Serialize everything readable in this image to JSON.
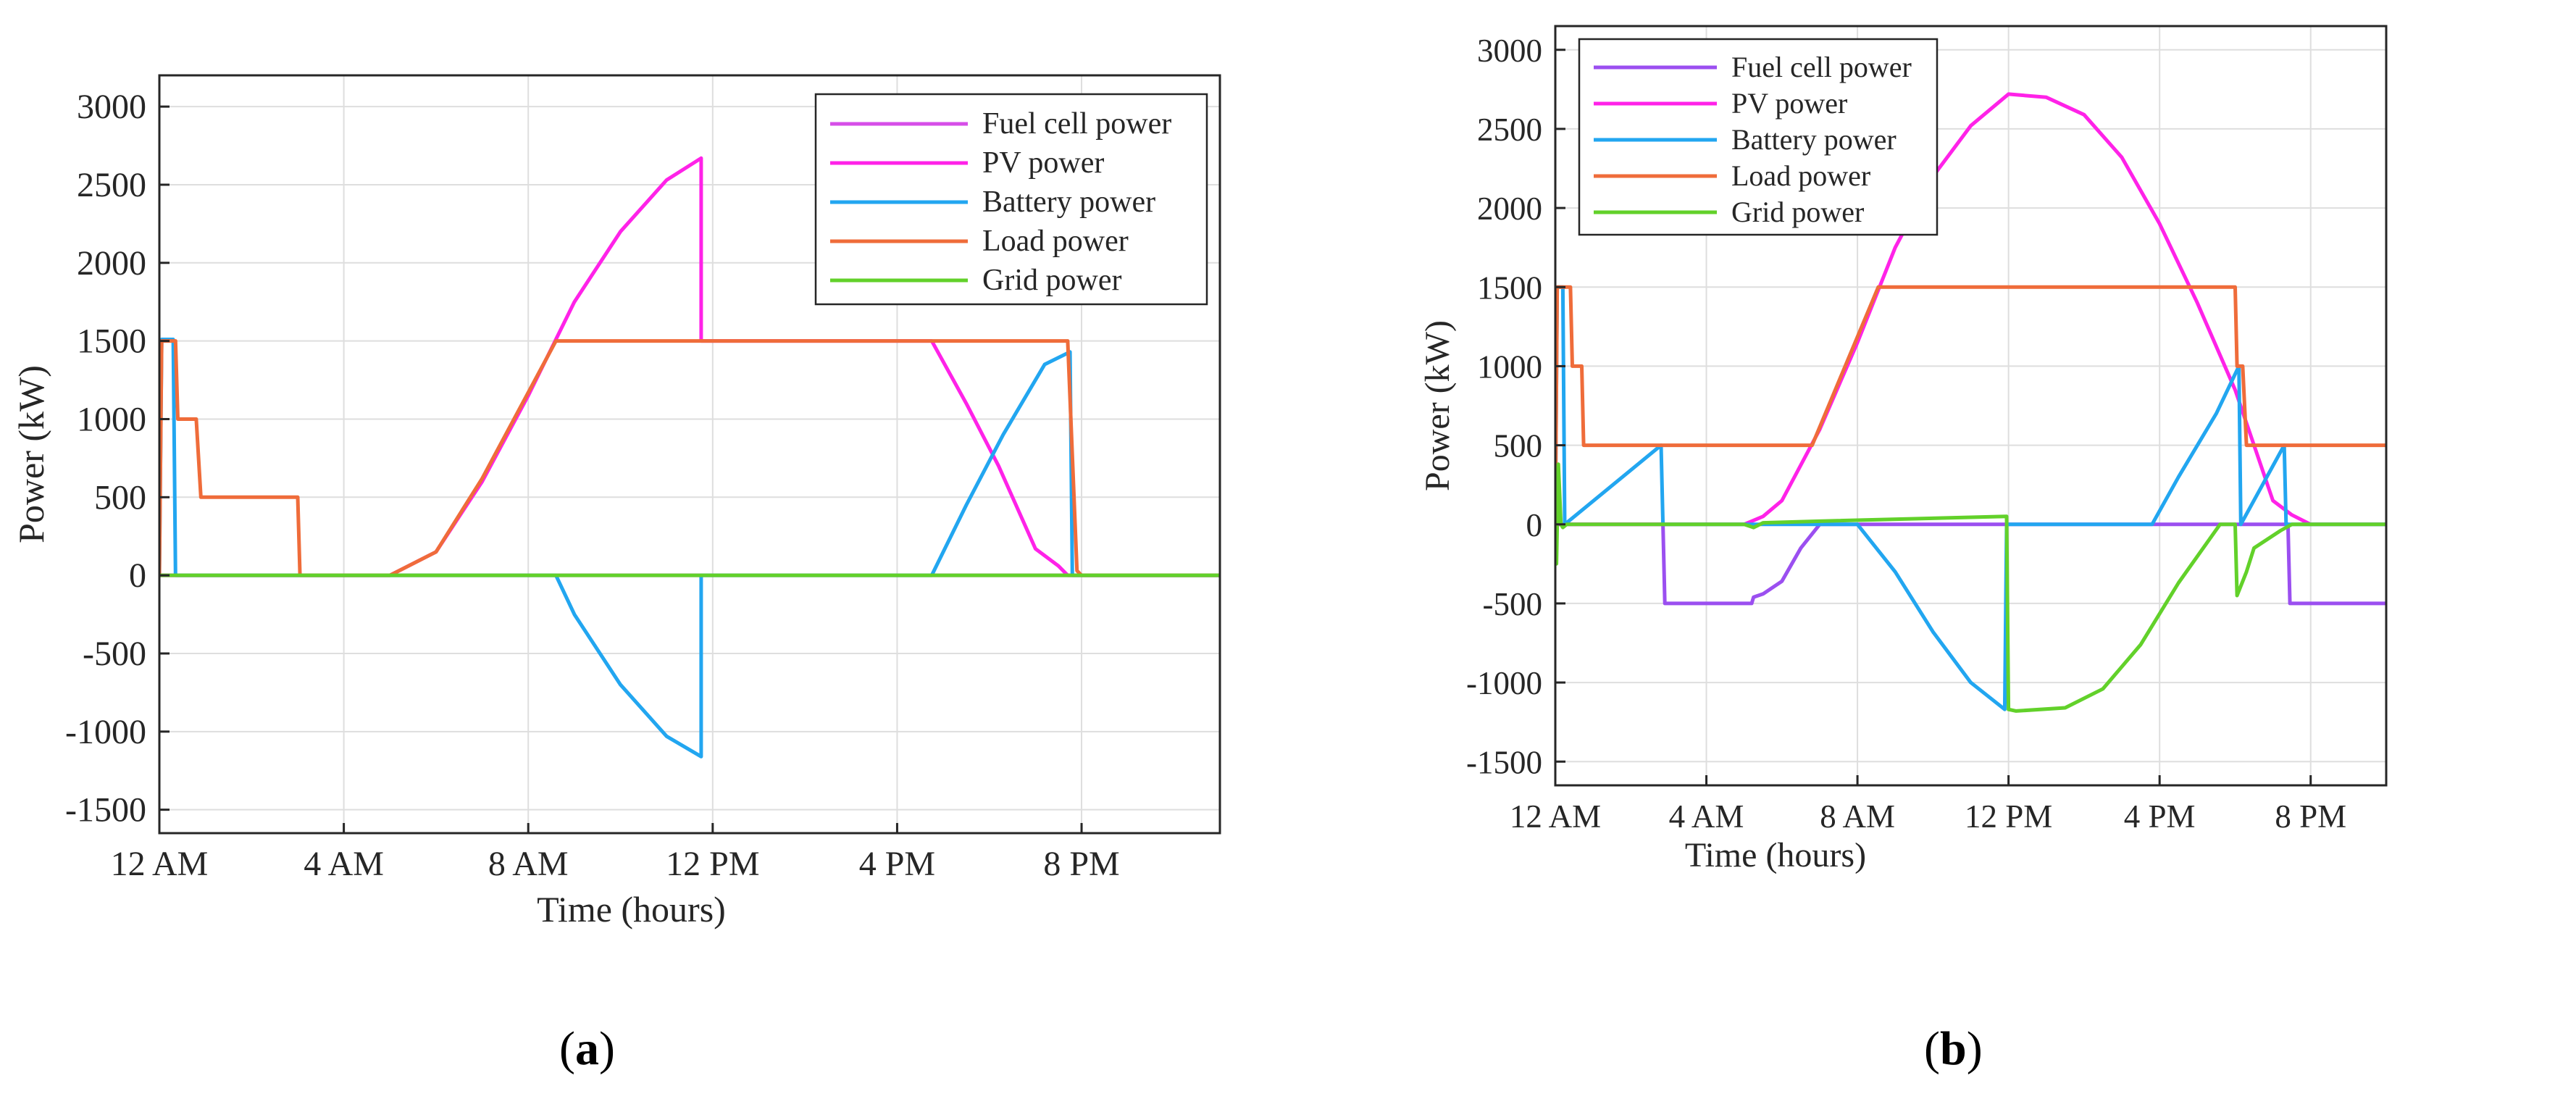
{
  "chart_data": [
    {
      "type": "line",
      "panel_label": "a",
      "xlabel": "Time (hours)",
      "ylabel": "Power (kW)",
      "xlim": [
        0,
        23
      ],
      "ylim": [
        -1650,
        3200
      ],
      "xticks": [
        0,
        4,
        8,
        12,
        16,
        20
      ],
      "xtick_labels": [
        "12 AM",
        "4 AM",
        "8 AM",
        "12 PM",
        "4 PM",
        "8 PM"
      ],
      "yticks": [
        -1500,
        -1000,
        -500,
        0,
        500,
        1000,
        1500,
        2000,
        2500,
        3000
      ],
      "ytick_labels": [
        "-1500",
        "-1000",
        "-500",
        "0",
        "500",
        "1000",
        "1500",
        "2000",
        "2500",
        "3000"
      ],
      "grid": true,
      "legend_position": "top-right",
      "series": [
        {
          "name": "Fuel cell power",
          "color": "#d64ee8",
          "points": [
            [
              0,
              0
            ],
            [
              23,
              0
            ]
          ]
        },
        {
          "name": "PV power",
          "color": "#ff22e8",
          "points": [
            [
              0,
              0
            ],
            [
              5,
              0
            ],
            [
              6,
              150
            ],
            [
              7,
              600
            ],
            [
              8,
              1150
            ],
            [
              9,
              1750
            ],
            [
              10,
              2200
            ],
            [
              11,
              2530
            ],
            [
              11.75,
              2670
            ],
            [
              11.75,
              1500
            ],
            [
              16.75,
              1500
            ],
            [
              17.5,
              1100
            ],
            [
              18.2,
              700
            ],
            [
              19,
              170
            ],
            [
              19.5,
              60
            ],
            [
              19.7,
              0
            ],
            [
              23,
              0
            ]
          ]
        },
        {
          "name": "Battery power",
          "color": "#22a6f0",
          "points": [
            [
              0,
              0
            ],
            [
              0.05,
              1510
            ],
            [
              0.3,
              1510
            ],
            [
              0.35,
              0
            ],
            [
              8.6,
              0
            ],
            [
              9,
              -250
            ],
            [
              10,
              -700
            ],
            [
              11,
              -1030
            ],
            [
              11.75,
              -1160
            ],
            [
              11.75,
              0
            ],
            [
              16.75,
              0
            ],
            [
              17.5,
              450
            ],
            [
              18.3,
              900
            ],
            [
              19.2,
              1350
            ],
            [
              19.75,
              1430
            ],
            [
              19.8,
              0
            ],
            [
              23,
              0
            ]
          ]
        },
        {
          "name": "Load power",
          "color": "#ef6c3a",
          "points": [
            [
              0,
              0
            ],
            [
              0.05,
              1500
            ],
            [
              0.35,
              1500
            ],
            [
              0.4,
              1000
            ],
            [
              0.8,
              1000
            ],
            [
              0.9,
              500
            ],
            [
              3,
              500
            ],
            [
              3.05,
              0
            ],
            [
              5,
              0
            ],
            [
              6,
              150
            ],
            [
              7,
              620
            ],
            [
              8.6,
              1500
            ],
            [
              19.7,
              1500
            ],
            [
              19.9,
              30
            ],
            [
              20,
              0
            ],
            [
              23,
              0
            ]
          ]
        },
        {
          "name": "Grid power",
          "color": "#62d12a",
          "points": [
            [
              0,
              0
            ],
            [
              23,
              0
            ]
          ]
        }
      ]
    },
    {
      "type": "line",
      "panel_label": "b",
      "xlabel": "Time (hours)",
      "ylabel": "Power (kW)",
      "xlim": [
        0,
        22
      ],
      "ylim": [
        -1650,
        3150
      ],
      "xticks": [
        0,
        4,
        8,
        12,
        16,
        20
      ],
      "xtick_labels": [
        "12 AM",
        "4 AM",
        "8 AM",
        "12 PM",
        "4 PM",
        "8 PM"
      ],
      "yticks": [
        -1500,
        -1000,
        -500,
        0,
        500,
        1000,
        1500,
        2000,
        2500,
        3000
      ],
      "ytick_labels": [
        "-1500",
        "-1000",
        "-500",
        "0",
        "500",
        "1000",
        "1500",
        "2000",
        "2500",
        "3000"
      ],
      "grid": true,
      "legend_position": "top-left",
      "series": [
        {
          "name": "Fuel cell power",
          "color": "#9b4ff0",
          "points": [
            [
              0,
              0
            ],
            [
              2.85,
              0
            ],
            [
              2.9,
              -500
            ],
            [
              5.2,
              -500
            ],
            [
              5.25,
              -460
            ],
            [
              5.5,
              -440
            ],
            [
              6,
              -360
            ],
            [
              6.5,
              -150
            ],
            [
              7,
              0
            ],
            [
              19.4,
              0
            ],
            [
              19.45,
              -500
            ],
            [
              22,
              -500
            ]
          ]
        },
        {
          "name": "PV power",
          "color": "#ff22e8",
          "points": [
            [
              0,
              0
            ],
            [
              5,
              0
            ],
            [
              5.5,
              50
            ],
            [
              6,
              150
            ],
            [
              7,
              600
            ],
            [
              8,
              1150
            ],
            [
              9,
              1750
            ],
            [
              10,
              2200
            ],
            [
              11,
              2520
            ],
            [
              12,
              2720
            ],
            [
              13,
              2700
            ],
            [
              14,
              2590
            ],
            [
              15,
              2320
            ],
            [
              16,
              1900
            ],
            [
              17,
              1400
            ],
            [
              18,
              850
            ],
            [
              19,
              150
            ],
            [
              19.5,
              60
            ],
            [
              20,
              0
            ],
            [
              22,
              0
            ]
          ]
        },
        {
          "name": "Battery power",
          "color": "#22a6f0",
          "points": [
            [
              0,
              0
            ],
            [
              0.05,
              1500
            ],
            [
              0.2,
              1500
            ],
            [
              0.25,
              0
            ],
            [
              2.8,
              500
            ],
            [
              2.85,
              0
            ],
            [
              8,
              0
            ],
            [
              9,
              -300
            ],
            [
              10,
              -680
            ],
            [
              11,
              -1000
            ],
            [
              11.9,
              -1170
            ],
            [
              11.95,
              0
            ],
            [
              15.8,
              0
            ],
            [
              16.5,
              300
            ],
            [
              17.5,
              700
            ],
            [
              18.1,
              1000
            ],
            [
              18.15,
              0
            ],
            [
              19.3,
              500
            ],
            [
              19.35,
              0
            ],
            [
              22,
              0
            ]
          ]
        },
        {
          "name": "Load power",
          "color": "#ef6c3a",
          "points": [
            [
              0,
              0
            ],
            [
              0.05,
              1500
            ],
            [
              0.4,
              1500
            ],
            [
              0.45,
              1000
            ],
            [
              0.7,
              1000
            ],
            [
              0.75,
              500
            ],
            [
              6.8,
              500
            ],
            [
              8.55,
              1500
            ],
            [
              18,
              1500
            ],
            [
              18.05,
              1000
            ],
            [
              18.2,
              1000
            ],
            [
              18.3,
              500
            ],
            [
              22,
              500
            ]
          ]
        },
        {
          "name": "Grid power",
          "color": "#62d12a",
          "points": [
            [
              0,
              0
            ],
            [
              0.03,
              -250
            ],
            [
              0.08,
              380
            ],
            [
              0.15,
              0
            ],
            [
              0.2,
              -20
            ],
            [
              0.3,
              0
            ],
            [
              5,
              0
            ],
            [
              5.25,
              -20
            ],
            [
              5.5,
              10
            ],
            [
              7,
              20
            ],
            [
              11.95,
              50
            ],
            [
              12,
              -1170
            ],
            [
              12.2,
              -1180
            ],
            [
              13.5,
              -1160
            ],
            [
              14.5,
              -1040
            ],
            [
              15.5,
              -760
            ],
            [
              16.5,
              -370
            ],
            [
              17.6,
              0
            ],
            [
              18,
              0
            ],
            [
              18.05,
              -450
            ],
            [
              18.3,
              -300
            ],
            [
              18.5,
              -150
            ],
            [
              19.2,
              -40
            ],
            [
              19.5,
              0
            ],
            [
              22,
              0
            ]
          ]
        }
      ]
    }
  ]
}
